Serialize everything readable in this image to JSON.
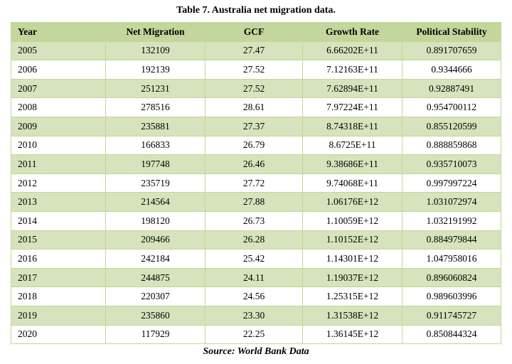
{
  "caption": "Table 7. Australia net migration data.",
  "columns": [
    "Year",
    "Net Migration",
    "GCF",
    "Growth Rate",
    "Political Stability"
  ],
  "rows": [
    [
      "2005",
      "132109",
      "27.47",
      "6.66202E+11",
      "0.891707659"
    ],
    [
      "2006",
      "192139",
      "27.52",
      "7.12163E+11",
      "0.9344666"
    ],
    [
      "2007",
      "251231",
      "27.52",
      "7.62894E+11",
      "0.92887491"
    ],
    [
      "2008",
      "278516",
      "28.61",
      "7.97224E+11",
      "0.954700112"
    ],
    [
      "2009",
      "235881",
      "27.37",
      "8.74318E+11",
      "0.855120599"
    ],
    [
      "2010",
      "166833",
      "26.79",
      "8.6725E+11",
      "0.888859868"
    ],
    [
      "2011",
      "197748",
      "26.46",
      "9.38686E+11",
      "0.935710073"
    ],
    [
      "2012",
      "235719",
      "27.72",
      "9.74068E+11",
      "0.997997224"
    ],
    [
      "2013",
      "214564",
      "27.88",
      "1.06176E+12",
      "1.031072974"
    ],
    [
      "2014",
      "198120",
      "26.73",
      "1.10059E+12",
      "1.032191992"
    ],
    [
      "2015",
      "209466",
      "26.28",
      "1.10152E+12",
      "0.884979844"
    ],
    [
      "2016",
      "242184",
      "25.42",
      "1.14301E+12",
      "1.047958016"
    ],
    [
      "2017",
      "244875",
      "24.11",
      "1.19037E+12",
      "0.896060824"
    ],
    [
      "2018",
      "220307",
      "24.56",
      "1.25315E+12",
      "0.989603996"
    ],
    [
      "2019",
      "235860",
      "23.30",
      "1.31538E+12",
      "0.911745727"
    ],
    [
      "2020",
      "117929",
      "22.25",
      "1.36145E+12",
      "0.850844324"
    ]
  ],
  "source": "Source: World Bank Data"
}
